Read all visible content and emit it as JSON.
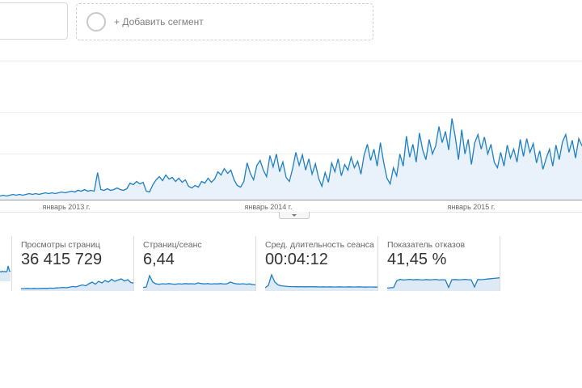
{
  "header": {
    "add_segment_label": "+ Добавить сегмент"
  },
  "chart": {
    "type": "line",
    "x_tick_labels": [
      "январь 2013 г.",
      "январь 2014 г.",
      "январь 2015 г."
    ],
    "line_color": "#1e7fc2",
    "fill_color": "#e9f2fa",
    "axis_color": "#9b9b9b",
    "values": [
      4,
      5,
      4,
      5,
      6,
      5,
      6,
      5,
      6,
      7,
      6,
      7,
      6,
      7,
      8,
      7,
      8,
      7,
      8,
      9,
      8,
      9,
      10,
      9,
      11,
      10,
      12,
      10,
      11,
      10,
      33,
      12,
      11,
      13,
      11,
      12,
      14,
      12,
      11,
      13,
      20,
      18,
      22,
      19,
      21,
      10,
      9,
      18,
      24,
      28,
      23,
      30,
      25,
      27,
      22,
      26,
      21,
      24,
      16,
      14,
      17,
      15,
      22,
      20,
      26,
      21,
      25,
      34,
      30,
      38,
      32,
      36,
      24,
      17,
      15,
      22,
      45,
      32,
      24,
      42,
      48,
      36,
      28,
      54,
      40,
      56,
      34,
      46,
      27,
      22,
      38,
      58,
      42,
      55,
      36,
      50,
      31,
      44,
      26,
      16,
      33,
      21,
      45,
      34,
      50,
      29,
      43,
      36,
      52,
      39,
      47,
      31,
      55,
      68,
      48,
      62,
      41,
      70,
      46,
      26,
      19,
      39,
      29,
      56,
      41,
      78,
      52,
      68,
      46,
      82,
      61,
      49,
      74,
      56,
      66,
      90,
      70,
      84,
      61,
      100,
      78,
      49,
      86,
      56,
      74,
      43,
      70,
      80,
      62,
      77,
      56,
      68,
      46,
      39,
      58,
      41,
      67,
      51,
      62,
      46,
      74,
      53,
      75,
      58,
      69,
      45,
      60,
      37,
      51,
      62,
      41,
      67,
      49,
      71,
      80,
      58,
      73,
      51,
      75,
      66
    ]
  },
  "metrics": {
    "cards": [
      {
        "label": "Просмотры страниц",
        "value": "36 415 729",
        "spark": [
          0.05,
          0.05,
          0.06,
          0.05,
          0.06,
          0.05,
          0.06,
          0.07,
          0.06,
          0.08,
          0.07,
          0.09,
          0.1,
          0.12,
          0.1,
          0.14,
          0.18,
          0.15,
          0.22,
          0.28,
          0.22,
          0.35,
          0.45,
          0.32,
          0.5,
          0.4,
          0.55,
          0.45,
          0.62,
          0.5,
          0.58,
          0.65,
          0.52,
          0.6,
          0.42,
          0.38
        ]
      },
      {
        "label": "Страниц/сеанс",
        "value": "6,44",
        "spark": [
          0.12,
          0.15,
          0.85,
          0.45,
          0.34,
          0.32,
          0.35,
          0.33,
          0.36,
          0.33,
          0.32,
          0.35,
          0.33,
          0.36,
          0.34,
          0.35,
          0.33,
          0.4,
          0.36,
          0.34,
          0.36,
          0.33,
          0.35,
          0.34,
          0.36,
          0.33,
          0.35,
          0.45,
          0.38,
          0.34,
          0.33,
          0.35,
          0.32,
          0.34,
          0.3,
          0.28
        ]
      },
      {
        "label": "Сред. длительность сеанса",
        "value": "00:04:12",
        "spark": [
          0.1,
          0.25,
          0.9,
          0.45,
          0.28,
          0.22,
          0.2,
          0.18,
          0.17,
          0.17,
          0.16,
          0.17,
          0.16,
          0.16,
          0.17,
          0.16,
          0.16,
          0.15,
          0.16,
          0.15,
          0.16,
          0.15,
          0.15,
          0.16,
          0.15,
          0.15,
          0.16,
          0.15,
          0.15,
          0.16,
          0.15,
          0.14,
          0.15,
          0.15,
          0.14,
          0.15
        ]
      },
      {
        "label": "Показатель отказов",
        "value": "41,45 %",
        "spark": [
          0.08,
          0.1,
          0.12,
          0.55,
          0.62,
          0.58,
          0.6,
          0.62,
          0.59,
          0.61,
          0.6,
          0.58,
          0.61,
          0.59,
          0.6,
          0.62,
          0.58,
          0.6,
          0.59,
          0.12,
          0.6,
          0.61,
          0.59,
          0.6,
          0.62,
          0.6,
          0.59,
          0.15,
          0.61,
          0.6,
          0.62,
          0.64,
          0.66,
          0.68,
          0.7,
          0.72
        ]
      }
    ],
    "left_fragment_spark": [
      0.5,
      0.48,
      0.52,
      0.49,
      0.51,
      0.48,
      0.52,
      0.85,
      0.55,
      0.5
    ]
  }
}
